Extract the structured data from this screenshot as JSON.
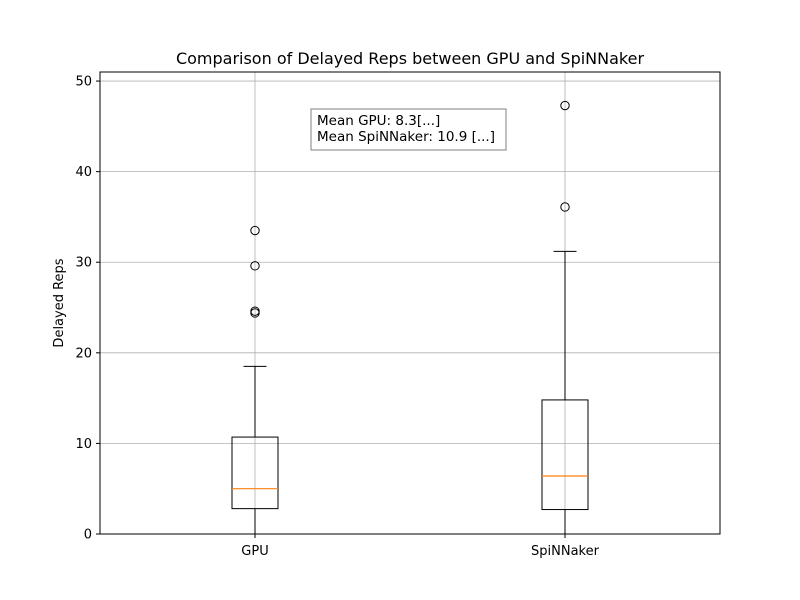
{
  "chart_data": {
    "type": "box",
    "title": "Comparison of Delayed Reps between GPU and SpiNNaker",
    "xlabel": "",
    "ylabel": "Delayed Reps",
    "categories": [
      "GPU",
      "SpiNNaker"
    ],
    "ylim": [
      0,
      51
    ],
    "yticks": [
      0,
      10,
      20,
      30,
      40,
      50
    ],
    "grid": true,
    "boxes": [
      {
        "label": "GPU",
        "whisker_low": 0,
        "q1": 2.8,
        "median": 5.0,
        "q3": 10.7,
        "whisker_high": 18.5,
        "outliers": [
          24.4,
          24.6,
          29.6,
          33.5
        ]
      },
      {
        "label": "SpiNNaker",
        "whisker_low": 0,
        "q1": 2.7,
        "median": 6.4,
        "q3": 14.8,
        "whisker_high": 31.2,
        "outliers": [
          36.1,
          47.3
        ]
      }
    ],
    "annotation": {
      "lines": [
        "Mean GPU: 8.3[...]",
        "Mean SpiNNaker: 10.9 [...]"
      ]
    },
    "colors": {
      "box": "#000000",
      "median": "#ff7f0e",
      "grid": "#b0b0b0",
      "annotation_border": "#808080"
    }
  }
}
